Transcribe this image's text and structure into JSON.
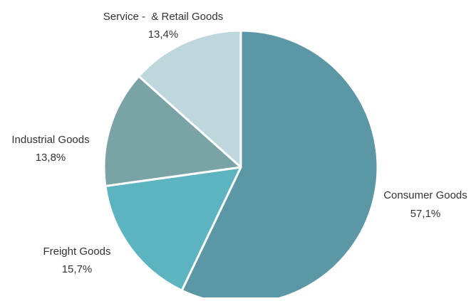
{
  "chart_data": {
    "type": "pie",
    "title": "",
    "start_angle_deg": 0,
    "direction": "clockwise",
    "slice_border_color": "#ffffff",
    "legend": "none (labels outside slices)",
    "slices": [
      {
        "label": "Consumer Goods",
        "value": 57.1,
        "value_label": "57,1%",
        "color": "#5c97a5"
      },
      {
        "label": "Freight Goods",
        "value": 15.7,
        "value_label": "15,7%",
        "color": "#5cb4c0"
      },
      {
        "label": "Industrial Goods",
        "value": 13.8,
        "value_label": "13,8%",
        "color": "#7aa3a6"
      },
      {
        "label": "Service -  & Retail Goods",
        "value": 13.4,
        "value_label": "13,4%",
        "color": "#bed7dd"
      }
    ]
  }
}
